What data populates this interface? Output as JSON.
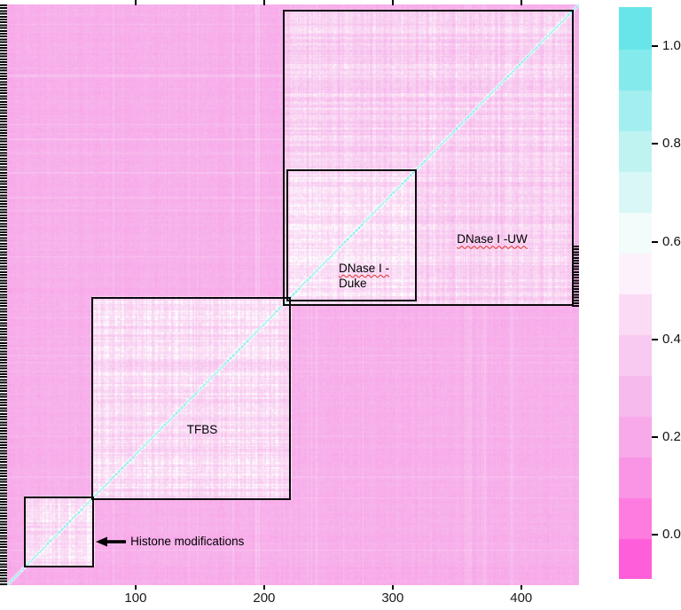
{
  "figure": {
    "background": "#ffffff"
  },
  "chart_data": {
    "type": "heatmap",
    "n": 445,
    "x_ticks": [
      100,
      200,
      300,
      400
    ],
    "background_value": 0.2,
    "diagonal_value": 1.0,
    "colorbar": {
      "vmin": -0.09,
      "vmax": 1.08,
      "steps": 14,
      "ticks": [
        1.0,
        0.8,
        0.6,
        0.4,
        0.2,
        0.0
      ],
      "tick_labels": [
        "1.0",
        "0.8",
        "0.6",
        "0.4",
        "0.2",
        "0.0"
      ],
      "palette": [
        [
          0.0,
          "#ff4fd8"
        ],
        [
          0.1,
          "#fe79df"
        ],
        [
          0.2,
          "#f99ce6"
        ],
        [
          0.3,
          "#f7b5ec"
        ],
        [
          0.4,
          "#f8ccf1"
        ],
        [
          0.5,
          "#fbe2f6"
        ],
        [
          0.57,
          "#ffffff"
        ],
        [
          0.65,
          "#e3f9f7"
        ],
        [
          0.75,
          "#bef3f2"
        ],
        [
          0.85,
          "#97edee"
        ],
        [
          0.93,
          "#76e8ea"
        ],
        [
          1.0,
          "#58e2e6"
        ]
      ]
    },
    "blocks": [
      {
        "id": "histone",
        "label": "Histone modifications",
        "start": 14,
        "end": 67,
        "mean_value": 0.46
      },
      {
        "id": "tfbs",
        "label": "TFBS",
        "start": 66,
        "end": 220,
        "mean_value": 0.45
      },
      {
        "id": "duke",
        "label": "DNase I -",
        "label2": "Duke",
        "start": 218,
        "end": 318,
        "mean_value": 0.47
      },
      {
        "id": "uw",
        "label": "DNase I -UW",
        "start": 215,
        "end": 440,
        "mean_value": 0.4
      }
    ]
  }
}
